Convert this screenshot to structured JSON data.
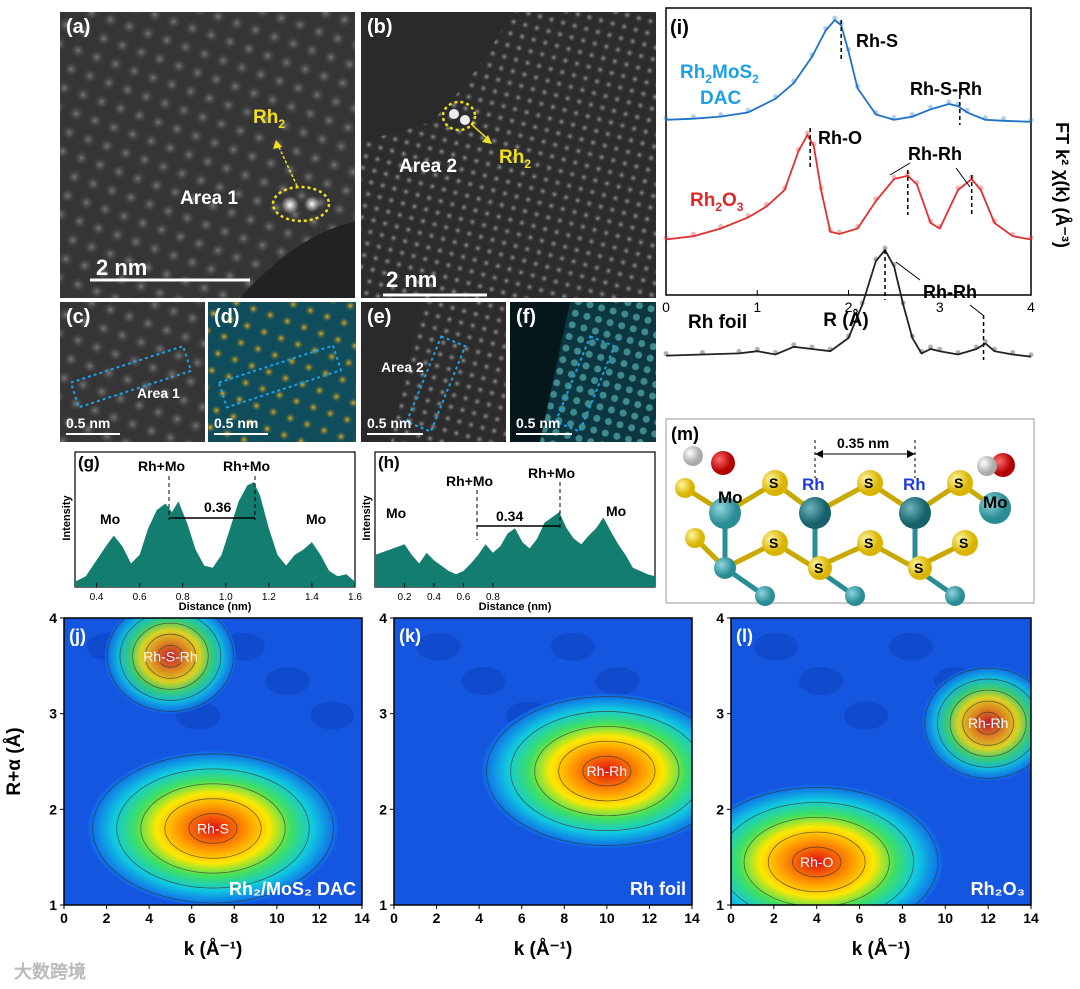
{
  "panels": {
    "a": {
      "label": "(a)",
      "area": "Area 1",
      "rh": "Rh",
      "rh_sub": "2",
      "scale": "2 nm"
    },
    "b": {
      "label": "(b)",
      "area": "Area 2",
      "rh": "Rh",
      "rh_sub": "2",
      "scale": "2 nm"
    },
    "c": {
      "label": "(c)",
      "area": "Area 1",
      "scale": "0.5 nm"
    },
    "d": {
      "label": "(d)",
      "scale": "0.5 nm"
    },
    "e": {
      "label": "(e)",
      "area": "Area 2",
      "scale": "0.5 nm"
    },
    "f": {
      "label": "(f)",
      "scale": "0.5 nm"
    },
    "m": {
      "label": "(m)",
      "distance": "0.35 nm",
      "atoms": {
        "mo": "Mo",
        "s": "S",
        "rh": "Rh"
      }
    }
  },
  "colors": {
    "teal": "#137d6f",
    "blue": "#1e73c8",
    "red": "#e03030",
    "black": "#222222",
    "labelBlue": "#1da1e6",
    "labelRed": "#e02828"
  },
  "chart_data": [
    {
      "id": "g",
      "type": "area",
      "panel_label": "(g)",
      "xlabel": "Distance (nm)",
      "ylabel": "Intensity",
      "xlim": [
        0.3,
        1.6
      ],
      "xticks": [
        0.4,
        0.6,
        0.8,
        1.0,
        1.2,
        1.4,
        1.6
      ],
      "x": [
        0.3,
        0.35,
        0.4,
        0.45,
        0.48,
        0.52,
        0.56,
        0.6,
        0.64,
        0.68,
        0.72,
        0.75,
        0.78,
        0.82,
        0.86,
        0.9,
        0.94,
        0.98,
        1.02,
        1.06,
        1.1,
        1.13,
        1.16,
        1.2,
        1.24,
        1.28,
        1.32,
        1.36,
        1.4,
        1.44,
        1.48,
        1.52,
        1.56,
        1.6
      ],
      "y": [
        0.05,
        0.1,
        0.25,
        0.4,
        0.48,
        0.38,
        0.22,
        0.3,
        0.55,
        0.72,
        0.78,
        0.7,
        0.8,
        0.6,
        0.35,
        0.2,
        0.18,
        0.3,
        0.55,
        0.8,
        0.95,
        0.98,
        0.85,
        0.55,
        0.3,
        0.2,
        0.3,
        0.35,
        0.42,
        0.3,
        0.15,
        0.1,
        0.12,
        0.05
      ],
      "annotations": {
        "left": "Rh+Mo",
        "right": "Rh+Mo",
        "mo_left": "Mo",
        "mo_right": "Mo",
        "spacing": "0.36"
      }
    },
    {
      "id": "h",
      "type": "area",
      "panel_label": "(h)",
      "xlabel": "Distance (nm)",
      "ylabel": "Intensity",
      "xlim": [
        0.0,
        1.9
      ],
      "xticks": [
        0.2,
        0.4,
        0.6,
        0.8
      ],
      "x": [
        0.0,
        0.1,
        0.2,
        0.25,
        0.3,
        0.35,
        0.4,
        0.45,
        0.5,
        0.55,
        0.6,
        0.65,
        0.7,
        0.75,
        0.8,
        0.85,
        0.9,
        0.95,
        1.0,
        1.05,
        1.1,
        1.15,
        1.2,
        1.25,
        1.3,
        1.35,
        1.4,
        1.45,
        1.5,
        1.55,
        1.6,
        1.65,
        1.7,
        1.75,
        1.8,
        1.85,
        1.9
      ],
      "y": [
        0.3,
        0.35,
        0.4,
        0.3,
        0.22,
        0.32,
        0.25,
        0.2,
        0.15,
        0.12,
        0.15,
        0.22,
        0.3,
        0.4,
        0.32,
        0.38,
        0.5,
        0.55,
        0.42,
        0.36,
        0.45,
        0.6,
        0.65,
        0.7,
        0.55,
        0.45,
        0.4,
        0.48,
        0.55,
        0.65,
        0.52,
        0.4,
        0.3,
        0.18,
        0.15,
        0.12,
        0.1
      ],
      "annotations": {
        "left": "Rh+Mo",
        "right": "Rh+Mo",
        "mo_left": "Mo",
        "mo_right": "Mo",
        "spacing": "0.34"
      }
    },
    {
      "id": "i",
      "type": "line",
      "panel_label": "(i)",
      "xlabel": "R (Å)",
      "ylabel": "FT k² χ(k) (Å⁻³)",
      "xlim": [
        0,
        4
      ],
      "xticks": [
        0,
        1,
        2,
        3,
        4
      ],
      "series": [
        {
          "name": "Rh₂MoS₂ DAC",
          "x": [
            0,
            0.3,
            0.6,
            0.9,
            1.2,
            1.4,
            1.6,
            1.75,
            1.85,
            1.92,
            2.0,
            2.1,
            2.3,
            2.5,
            2.7,
            2.9,
            3.1,
            3.2,
            3.3,
            3.5,
            3.7,
            4.0
          ],
          "y": [
            0.05,
            0.06,
            0.08,
            0.12,
            0.25,
            0.4,
            0.65,
            0.9,
            1.0,
            0.95,
            0.7,
            0.35,
            0.1,
            0.05,
            0.08,
            0.15,
            0.2,
            0.18,
            0.12,
            0.05,
            0.04,
            0.03
          ]
        },
        {
          "name": "Rh₂O₃",
          "x": [
            0,
            0.3,
            0.6,
            0.9,
            1.1,
            1.3,
            1.45,
            1.55,
            1.62,
            1.7,
            1.8,
            1.9,
            2.1,
            2.3,
            2.5,
            2.65,
            2.75,
            2.9,
            3.0,
            3.2,
            3.35,
            3.45,
            3.6,
            3.8,
            4.0
          ],
          "y": [
            0.05,
            0.08,
            0.15,
            0.25,
            0.35,
            0.5,
            0.85,
            1.0,
            0.9,
            0.5,
            0.12,
            0.1,
            0.15,
            0.4,
            0.6,
            0.63,
            0.55,
            0.2,
            0.15,
            0.5,
            0.6,
            0.5,
            0.2,
            0.08,
            0.05
          ]
        },
        {
          "name": "Rh foil",
          "x": [
            0,
            0.4,
            0.8,
            1.0,
            1.2,
            1.4,
            1.6,
            1.8,
            2.0,
            2.15,
            2.3,
            2.4,
            2.5,
            2.6,
            2.7,
            2.8,
            2.9,
            3.0,
            3.2,
            3.4,
            3.5,
            3.6,
            3.8,
            4.0
          ],
          "y": [
            0.04,
            0.05,
            0.06,
            0.08,
            0.05,
            0.12,
            0.1,
            0.08,
            0.2,
            0.5,
            0.9,
            1.0,
            0.85,
            0.5,
            0.2,
            0.06,
            0.1,
            0.08,
            0.05,
            0.1,
            0.15,
            0.08,
            0.05,
            0.03
          ]
        }
      ],
      "annotations": {
        "rhs": "Rh-S",
        "rhsrh": "Rh-S-Rh",
        "rho": "Rh-O",
        "rhrh1": "Rh-Rh",
        "rhrh2": "Rh-Rh",
        "dac_label_1": "Rh",
        "dac_label_2": "2",
        "dac_label_3": "MoS",
        "dac_label_4": "2",
        "dac_label_5": "DAC",
        "oxide_1": "Rh",
        "oxide_2": "2",
        "oxide_3": "O",
        "oxide_4": "3",
        "foil": "Rh foil"
      }
    },
    {
      "id": "j",
      "type": "heatmap",
      "panel_label": "(j)",
      "xlabel": "k (Å⁻¹)",
      "ylabel": "R+α (Å)",
      "xlim": [
        0,
        14
      ],
      "ylim": [
        1,
        4
      ],
      "xticks": [
        0,
        2,
        4,
        6,
        8,
        10,
        12,
        14
      ],
      "yticks": [
        1,
        2,
        3,
        4
      ],
      "peaks": [
        {
          "label": "Rh-S",
          "k": 7.0,
          "r": 1.8
        },
        {
          "label": "Rh-S-Rh",
          "k": 5.0,
          "r": 3.6
        }
      ],
      "caption": "Rh₂/MoS₂ DAC"
    },
    {
      "id": "k",
      "type": "heatmap",
      "panel_label": "(k)",
      "xlabel": "k (Å⁻¹)",
      "xlim": [
        0,
        14
      ],
      "ylim": [
        1,
        4
      ],
      "xticks": [
        0,
        2,
        4,
        6,
        8,
        10,
        12,
        14
      ],
      "yticks": [
        1,
        2,
        3,
        4
      ],
      "peaks": [
        {
          "label": "Rh-Rh",
          "k": 10.0,
          "r": 2.4
        }
      ],
      "caption": "Rh foil"
    },
    {
      "id": "l",
      "type": "heatmap",
      "panel_label": "(l)",
      "xlabel": "k (Å⁻¹)",
      "xlim": [
        0,
        14
      ],
      "ylim": [
        1,
        4
      ],
      "xticks": [
        0,
        2,
        4,
        6,
        8,
        10,
        12,
        14
      ],
      "yticks": [
        1,
        2,
        3,
        4
      ],
      "peaks": [
        {
          "label": "Rh-O",
          "k": 4.0,
          "r": 1.45
        },
        {
          "label": "Rh-Rh",
          "k": 12.0,
          "r": 2.9
        }
      ],
      "caption": "Rh₂O₃"
    }
  ],
  "watermark": "大数跨境"
}
